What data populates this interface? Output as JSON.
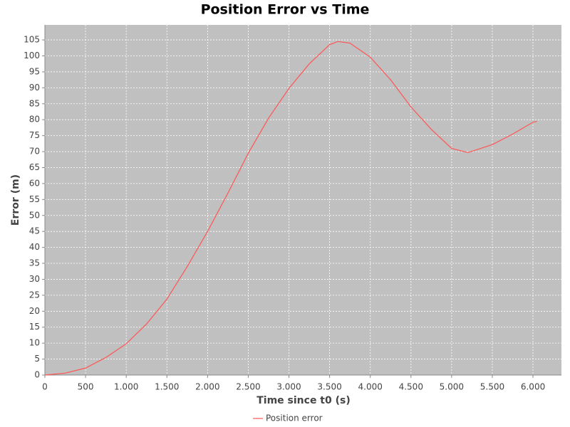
{
  "chart_data": {
    "type": "line",
    "title": "Position Error vs Time",
    "x_label": "Time since t0 (s)",
    "y_label": "Error (m)",
    "x": [
      0,
      250,
      500,
      750,
      1000,
      1250,
      1500,
      1750,
      2000,
      2250,
      2500,
      2750,
      3000,
      3250,
      3500,
      3600,
      3750,
      4000,
      4250,
      4500,
      4750,
      5000,
      5200,
      5500,
      5750,
      6000,
      6050
    ],
    "series": [
      {
        "name": "Position error",
        "color": "#ff5555",
        "values": [
          0,
          0.6,
          2.2,
          5.5,
          9.8,
          16,
          23.8,
          34,
          45,
          57,
          69.5,
          80.5,
          89.8,
          97.5,
          103.5,
          104.5,
          104,
          99.6,
          92.5,
          84,
          77,
          71,
          69.7,
          72.2,
          75.5,
          79.2,
          79.5
        ]
      }
    ],
    "xlim": [
      0,
      6350
    ],
    "ylim": [
      0,
      109.7
    ],
    "xticks": [
      0,
      500,
      {
        "value": 1000,
        "label": "1.000"
      },
      {
        "value": 1500,
        "label": "1.500"
      },
      {
        "value": 2000,
        "label": "2.000"
      },
      {
        "value": 2500,
        "label": "2.500"
      },
      {
        "value": 3000,
        "label": "3.000"
      },
      {
        "value": 3500,
        "label": "3.500"
      },
      {
        "value": 4000,
        "label": "4.000"
      },
      {
        "value": 4500,
        "label": "4.500"
      },
      {
        "value": 5000,
        "label": "5.000"
      },
      {
        "value": 5500,
        "label": "5.500"
      },
      {
        "value": 6000,
        "label": "6.000"
      }
    ],
    "yticks": [
      0,
      5,
      10,
      15,
      20,
      25,
      30,
      35,
      40,
      45,
      50,
      55,
      60,
      65,
      70,
      75,
      80,
      85,
      90,
      95,
      100,
      105
    ],
    "grid": true,
    "legend": "bottom"
  }
}
